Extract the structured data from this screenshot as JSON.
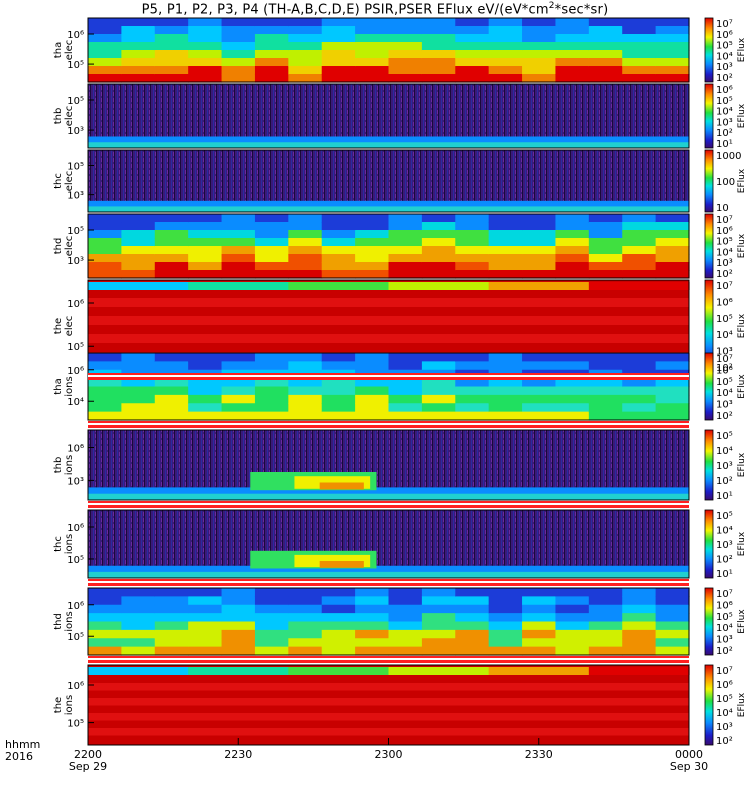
{
  "chart_data": {
    "type": "heatmap",
    "title": "P5, P1, P2, P3, P4 (TH-A,B,C,D,E) PSIR,PSER EFlux eV/(eV*cm²*sec*sr)",
    "title_parts": {
      "pre": "P5, P1, P2, P3, P4 (TH-A,B,C,D,E) PSIR,PSER EFlux eV/(eV*cm",
      "sup": "2",
      "post": "*sec*sr)"
    },
    "x_axis": {
      "ticks": [
        "2200",
        "2230",
        "2300",
        "2330",
        "0000"
      ],
      "dates": [
        "Sep 29",
        "",
        "",
        "",
        "Sep 30"
      ],
      "range": [
        "2200",
        "0000"
      ],
      "row_labels": [
        "hhmm",
        "2016"
      ]
    },
    "panels": [
      {
        "label": [
          "tha",
          "elec"
        ],
        "yticks": [
          "10⁶",
          "10⁵"
        ],
        "colorbar": {
          "title": "EFlux",
          "labels": [
            "10⁷",
            "10⁶",
            "10⁵",
            "10⁴",
            "10³",
            "10²"
          ]
        }
      },
      {
        "label": [
          "thb",
          "elec"
        ],
        "yticks": [
          "10⁵",
          "10³"
        ],
        "colorbar": {
          "title": "EFlux",
          "labels": [
            "10⁶",
            "10⁵",
            "10⁴",
            "10³",
            "10²",
            "10¹"
          ]
        }
      },
      {
        "label": [
          "thc",
          "elec"
        ],
        "yticks": [
          "10⁵",
          "10³"
        ],
        "colorbar": {
          "title": "EFlux",
          "labels": [
            "1000",
            "100",
            "10"
          ]
        }
      },
      {
        "label": [
          "thd",
          "elec"
        ],
        "yticks": [
          "10⁵",
          "10³"
        ],
        "colorbar": {
          "title": "EFlux",
          "labels": [
            "10⁷",
            "10⁶",
            "10⁵",
            "10⁴",
            "10³",
            "10²"
          ]
        }
      },
      {
        "label": [
          "the",
          "elec"
        ],
        "yticks": [
          "10⁶",
          "10⁵"
        ],
        "colorbar": {
          "title": "EFlux",
          "labels": [
            "10⁷",
            "10⁶",
            "10⁵",
            "10⁴",
            "10³",
            "10²"
          ]
        }
      },
      {
        "label": [
          "tha",
          "ions"
        ],
        "yticks": [
          "10⁶",
          "10⁴"
        ],
        "colorbar": {
          "title": "EFlux",
          "labels": [
            "10⁷",
            "10⁶",
            "10⁵",
            "10⁴",
            "10³",
            "10²"
          ]
        }
      },
      {
        "label": [
          "thb",
          "ions"
        ],
        "yticks": [
          "10⁶",
          "10³"
        ],
        "colorbar": {
          "title": "EFlux",
          "labels": [
            "10⁵",
            "10⁴",
            "10³",
            "10²",
            "10¹"
          ]
        }
      },
      {
        "label": [
          "thc",
          "ions"
        ],
        "yticks": [
          "10⁶",
          "10⁵"
        ],
        "colorbar": {
          "title": "EFlux",
          "labels": [
            "10⁵",
            "10⁴",
            "10³",
            "10²",
            "10¹"
          ]
        }
      },
      {
        "label": [
          "thd",
          "ions"
        ],
        "yticks": [
          "10⁶",
          "10⁵"
        ],
        "colorbar": {
          "title": "EFlux",
          "labels": [
            "10⁷",
            "10⁶",
            "10⁵",
            "10⁴",
            "10³",
            "10²"
          ]
        }
      },
      {
        "label": [
          "the",
          "ions"
        ],
        "yticks": [
          "10⁶",
          "10⁵"
        ],
        "colorbar": {
          "title": "EFlux",
          "labels": [
            "10⁷",
            "10⁶",
            "10⁵",
            "10⁴",
            "10³",
            "10²"
          ]
        }
      }
    ]
  }
}
